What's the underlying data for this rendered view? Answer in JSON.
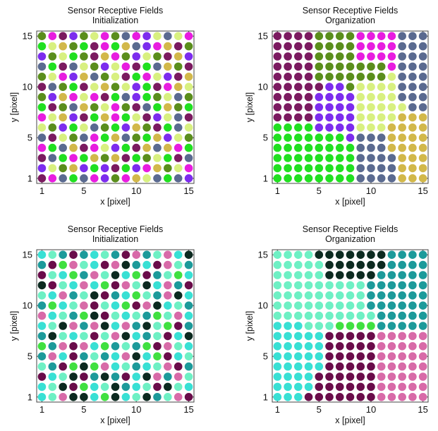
{
  "colors": {
    "p0": {
      "A": "#5a8e1c",
      "B": "#e81ce0",
      "C": "#7b1a60",
      "D": "#7c2cee",
      "E": "#d8f080",
      "F": "#5a6a90",
      "G": "#20e020",
      "H": "#d2b84a"
    },
    "p1": {
      "A": "#38e0d4",
      "B": "#1c9a9a",
      "C": "#6a0c4a",
      "D": "#0c2a20",
      "E": "#6ef0c4",
      "F": "#d86aa8",
      "G": "#40e040"
    }
  },
  "chart_data": [
    {
      "type": "scatter",
      "title": "Sensor Receptive Fields",
      "subtitle": "Initialization",
      "xlabel": "x [pixel]",
      "ylabel": "y [pixel]",
      "xlim": [
        0.5,
        15.5
      ],
      "ylim": [
        0.5,
        15.5
      ],
      "xticks": [
        1,
        5,
        10,
        15
      ],
      "yticks": [
        1,
        5,
        10,
        15
      ],
      "palette": "p0",
      "grid_rows_top_to_bottom": [
        "ABCDAEBAFBDEFEB",
        "GEHAGCBGHFDBHCA",
        "DAEGACHBADEACHD",
        "FGCFEADEBCGFHAC",
        "AEBDHFAECGBEDCH",
        "CFAGCEHAEDGCBHE",
        "ADHBEBCGFDGAEFA",
        "GCAFHAEBACFGHAG",
        "BEHDCGHBGECDEFC",
        "EADGEFAGDHACGFE",
        "FCEAFBGHFAGHDEA",
        "BGFHCBEDGCHFHBG",
        "CFGBGHAHCGAEGCF",
        "DEAHDGDCGDBHAEB",
        "CBFGFBDABHEFGFD"
      ]
    },
    {
      "type": "scatter",
      "title": "Sensor Receptive Fields",
      "subtitle": "Organization",
      "xlabel": "x [pixel]",
      "ylabel": "y [pixel]",
      "xlim": [
        0.5,
        15.5
      ],
      "ylim": [
        0.5,
        15.5
      ],
      "xticks": [
        1,
        5,
        10,
        15
      ],
      "yticks": [
        1,
        5,
        10,
        15
      ],
      "palette": "p0",
      "grid_rows_top_to_bottom": [
        "CCCCAAAABBBBFFF",
        "CCCCAAAABBBBFFF",
        "CCCCAAAABBBBFFF",
        "CCCCAAAAAAABFFF",
        "CCCCAAAAAAAEFFF",
        "CCCCCDDAEEEEFFF",
        "CCCCDDDDEEEEFFF",
        "CCCCDDDDEEEEEFF",
        "CCCCDDDDEEEEHHH",
        "GGGGDDDDEEEHHHH",
        "GGGGGGGDFFFHHHH",
        "GGGGGGGGFFFHHHH",
        "GGGGGGGGFFFFHHH",
        "GGGGGGGGFFFFHHH",
        "GGGGGGGGFFFFHHH"
      ]
    },
    {
      "type": "scatter",
      "title": "Sensor Receptive Fields",
      "subtitle": "Initialization",
      "xlabel": "x [pixel]",
      "ylabel": "y [pixel]",
      "xlim": [
        0.5,
        15.5
      ],
      "ylim": [
        0.5,
        15.5
      ],
      "xticks": [
        1,
        5,
        10,
        15
      ],
      "yticks": [
        1,
        5,
        10,
        15
      ],
      "palette": "p1",
      "grid_rows_top_to_bottom": [
        "AEBCBAEBCFBEFAD",
        "BCGFEACFDBACFEB",
        "CEAGBFEDAGCBEGA",
        "DCEAFAGCFEDAFBC",
        "EAFBEDCBAGEBFDA",
        "BGAEFCEAGCFDAEB",
        "FAEBGDCEAEBGEFA",
        "AEDFBFDAFBDEGCB",
        "BDEAECEFDABECAD",
        "GBFCFAGBEBGCFEA",
        "BFACBEBAFDAGCAE",
        "EBCGDGFAEBAEFCB",
        "CAEDCBDBCADFBFE",
        "AEDCGAEDBAECDEA",
        "AEFDDAGDAEDBEFC"
      ]
    },
    {
      "type": "scatter",
      "title": "Sensor Receptive Fields",
      "subtitle": "Organization",
      "xlabel": "x [pixel]",
      "ylabel": "y [pixel]",
      "xlim": [
        0.5,
        15.5
      ],
      "ylim": [
        0.5,
        15.5
      ],
      "xticks": [
        1,
        5,
        10,
        15
      ],
      "yticks": [
        1,
        5,
        10,
        15
      ],
      "palette": "p1",
      "grid_rows_top_to_bottom": [
        "EEEEDDDDDDDBBBB",
        "EEEEEDDDDDDBBBB",
        "EEEEEDDDDDBBBBB",
        "EEEEEEEEEBBBBBB",
        "EEEEEEEEEBBBBBB",
        "EEEEEEEEEBBBBBB",
        "EEEEEEEEEEBBBBB",
        "AAAEEEGGGGBBBBB",
        "AAAAACCCCCFFFFF",
        "AAAAACCCCCFFFFF",
        "AAAAACCCCCFFFFF",
        "AAAAACCCCCFFFFF",
        "AAAACCCCCCFFFFF",
        "AAAACCCCCCFFFFF",
        "AAACCCCCCCFFFFF"
      ]
    }
  ]
}
